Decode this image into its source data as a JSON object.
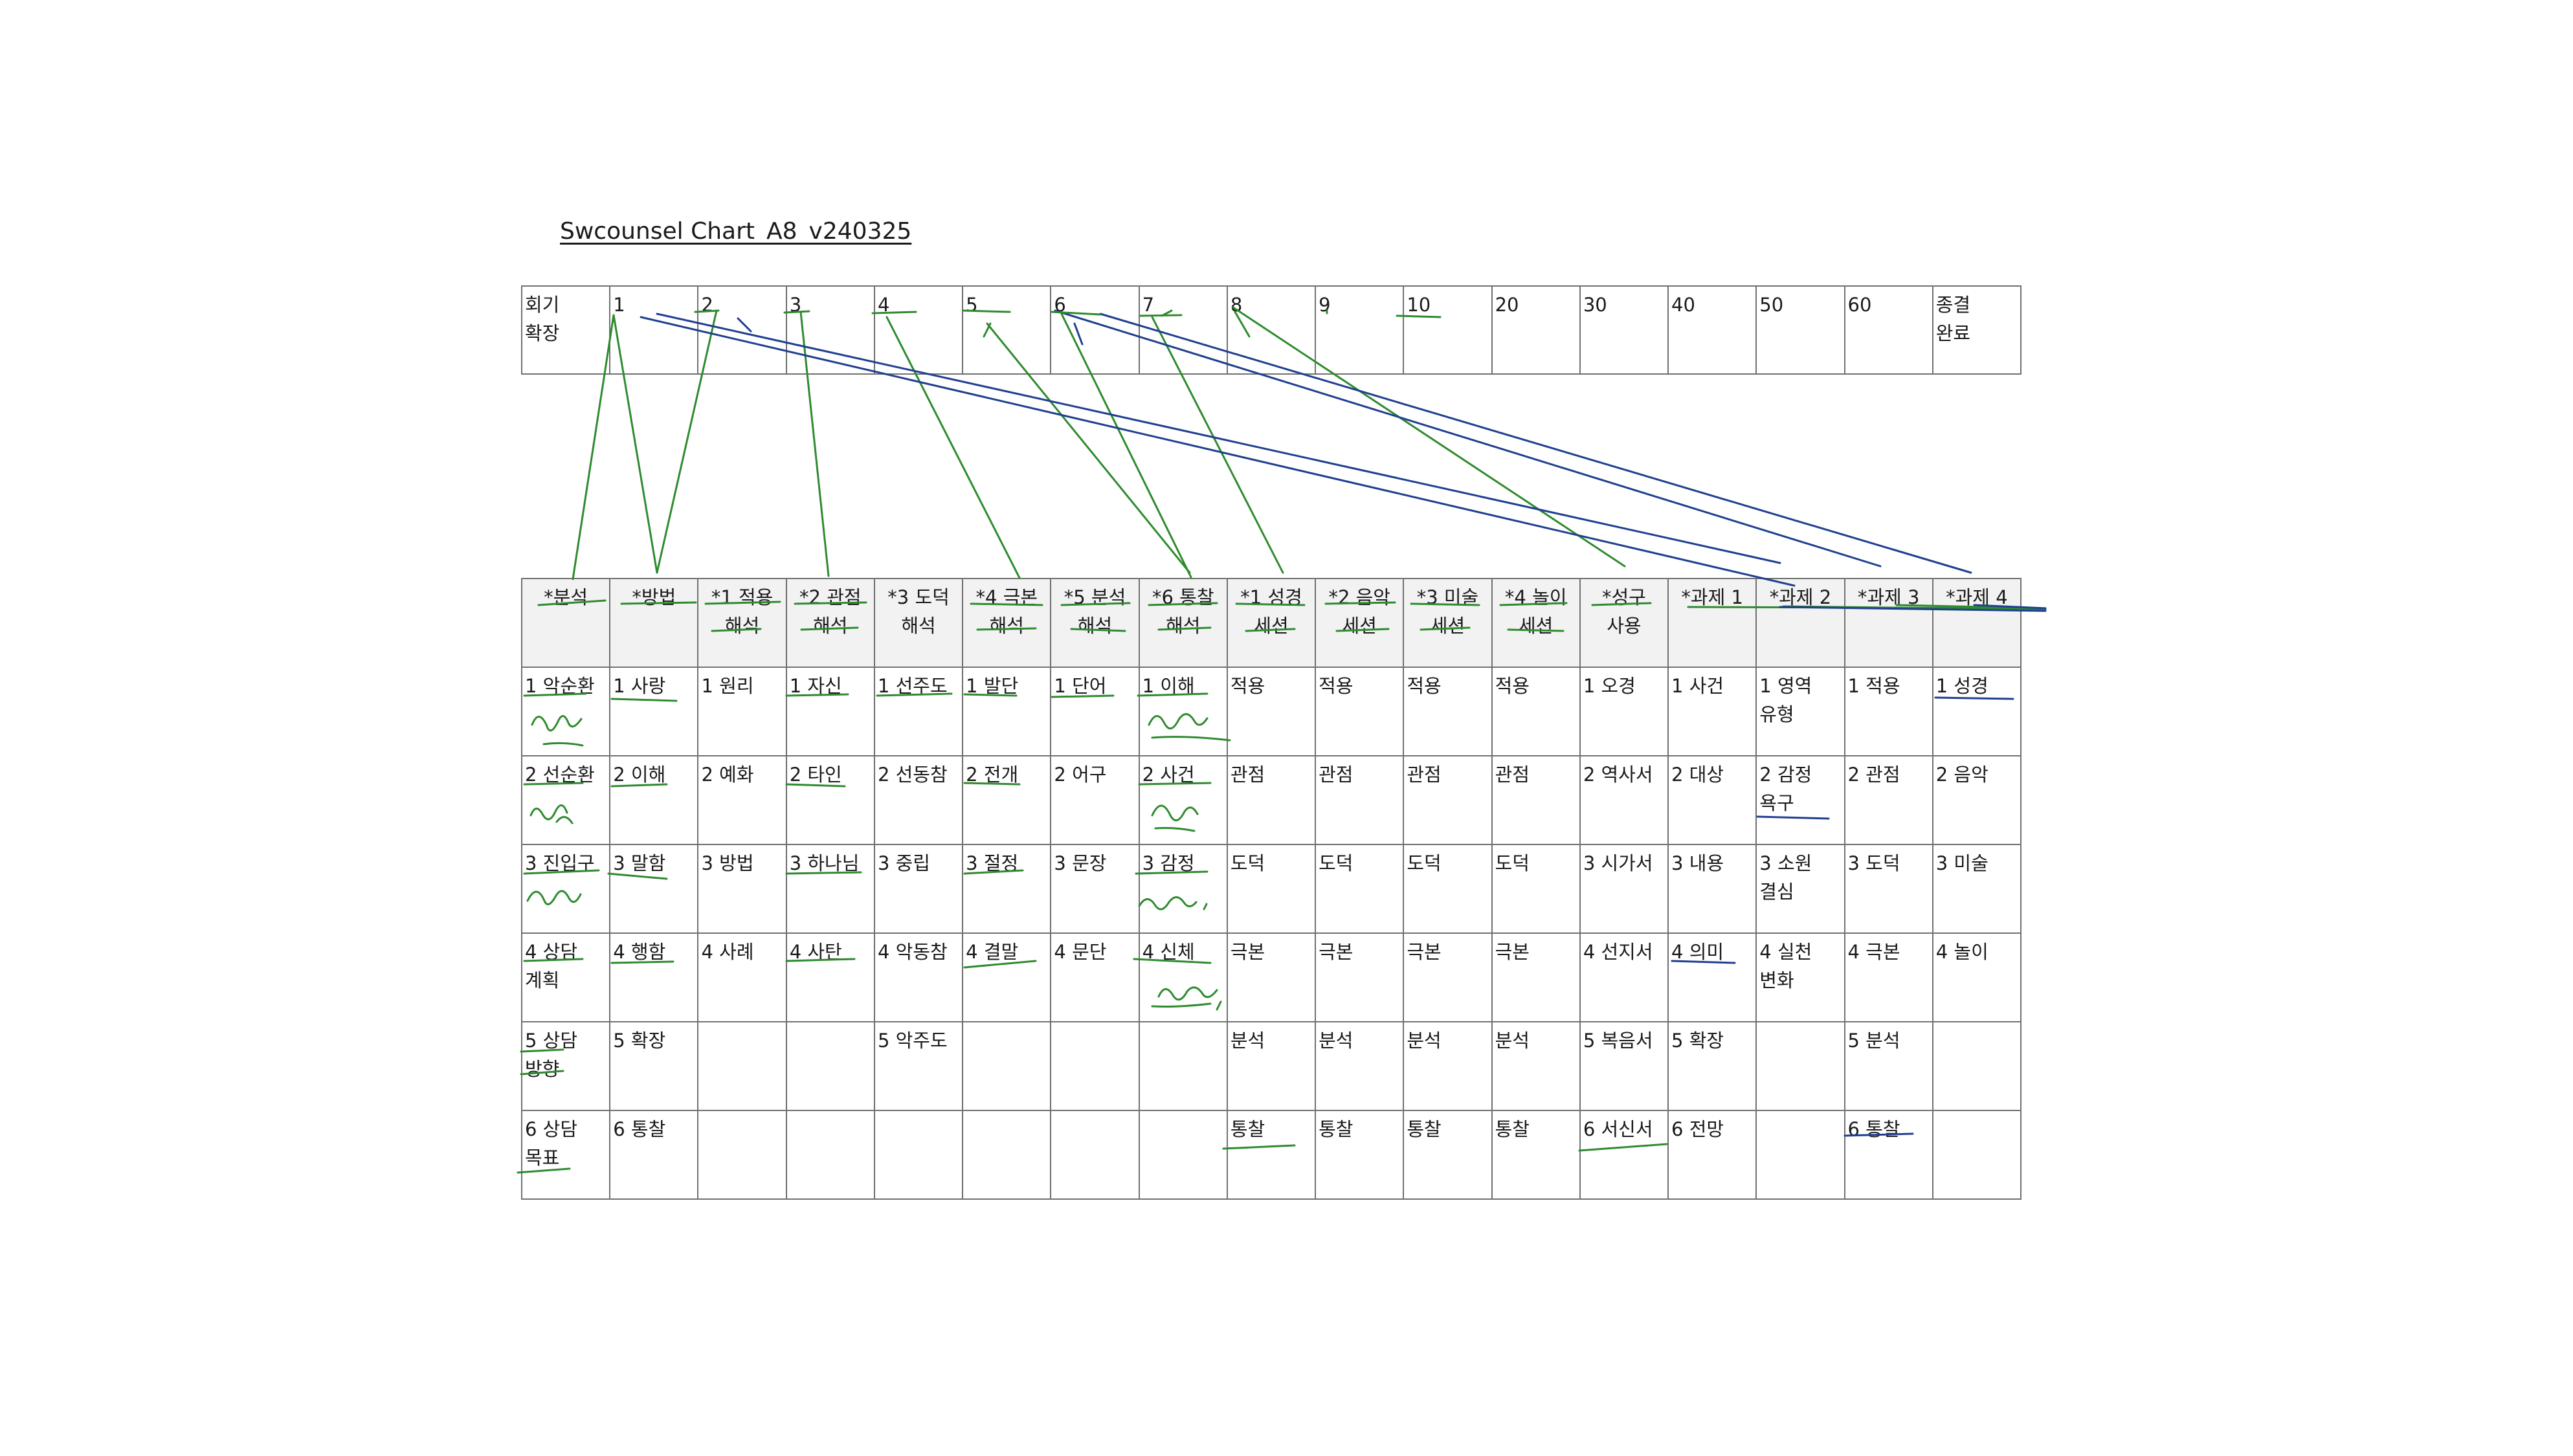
{
  "title": "Swcounsel Chart_A8_v240325",
  "session_row": [
    "회기\n확장",
    "1",
    "2",
    "3",
    "4",
    "5",
    "6",
    "7",
    "8",
    "9",
    "10",
    "20",
    "30",
    "40",
    "50",
    "60",
    "종결\n완료"
  ],
  "header_row": [
    "*분석",
    "*방법",
    "*1 적용\n해석",
    "*2 관점\n해석",
    "*3 도덕\n해석",
    "*4 극본\n해석",
    "*5 분석\n해석",
    "*6 통찰\n해석",
    "*1 성경\n세션",
    "*2 음악\n세션",
    "*3 미술\n세션",
    "*4 놀이\n세션",
    "*성구\n사용",
    "*과제 1",
    "*과제 2",
    "*과제 3",
    "*과제 4"
  ],
  "body_rows": [
    [
      "1 악순환",
      "1 사랑",
      "1 원리",
      "1 자신",
      "1 선주도",
      "1 발단",
      "1 단어",
      "1 이해",
      "적용",
      "적용",
      "적용",
      "적용",
      "1 오경",
      "1 사건",
      "1 영역\n유형",
      "1 적용",
      "1 성경"
    ],
    [
      "2 선순환",
      "2 이해",
      "2 예화",
      "2 타인",
      "2 선동참",
      "2 전개",
      "2 어구",
      "2 사건",
      "관점",
      "관점",
      "관점",
      "관점",
      "2 역사서",
      "2 대상",
      "2 감정\n욕구",
      "2 관점",
      "2 음악"
    ],
    [
      "3 진입구",
      "3 말함",
      "3 방법",
      "3 하나님",
      "3 중립",
      "3 절정",
      "3 문장",
      "3 감정",
      "도덕",
      "도덕",
      "도덕",
      "도덕",
      "3 시가서",
      "3 내용",
      "3 소원\n결심",
      "3 도덕",
      "3 미술"
    ],
    [
      "4 상담\n계획",
      "4 행함",
      "4 사례",
      "4 사탄",
      "4 악동참",
      "4 결말",
      "4 문단",
      "4 신체",
      "극본",
      "극본",
      "극본",
      "극본",
      "4 선지서",
      "4 의미",
      "4 실천\n변화",
      "4 극본",
      "4 놀이"
    ],
    [
      "5 상담\n방향",
      "5 확장",
      "",
      "",
      "5 악주도",
      "",
      "",
      "",
      "분석",
      "분석",
      "분석",
      "분석",
      "5 복음서",
      "5 확장",
      "",
      "5 분석",
      ""
    ],
    [
      "6 상담\n목표",
      "6 통찰",
      "",
      "",
      "",
      "",
      "",
      "",
      "통찰",
      "통찰",
      "통찰",
      "통찰",
      "6 서신서",
      "6 전망",
      "",
      "6 통찰",
      ""
    ]
  ],
  "colors": {
    "green_ink": "#2e8b2e",
    "blue_ink": "#1f3f8f",
    "grid": "#707070"
  }
}
